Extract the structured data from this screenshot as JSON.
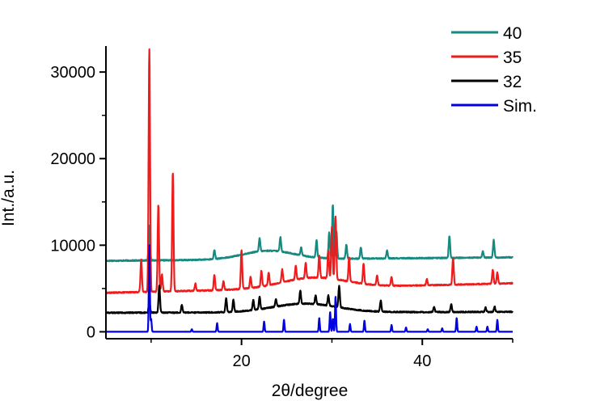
{
  "chart_data": {
    "type": "line",
    "title": "",
    "xlabel": "2θ/degree",
    "ylabel": "Int./a.u.",
    "xlim": [
      5,
      50
    ],
    "ylim": [
      -800,
      33000
    ],
    "x_ticks": [
      20,
      40
    ],
    "y_ticks": [
      0,
      10000,
      20000,
      30000
    ],
    "grid": false,
    "legend": {
      "position": "top-right",
      "order": [
        "40",
        "35",
        "32",
        "Sim."
      ]
    },
    "series": [
      {
        "name": "40",
        "color": "#168a80",
        "baseline": 8000,
        "offset_start": 8200,
        "offset_end": 8600,
        "hump": {
          "center": 23,
          "width": 4,
          "height": 1000
        },
        "peaks": [
          [
            9.8,
            4000
          ],
          [
            17.0,
            1000
          ],
          [
            22.0,
            1500
          ],
          [
            24.3,
            1700
          ],
          [
            26.6,
            900
          ],
          [
            28.3,
            2000
          ],
          [
            29.7,
            3000
          ],
          [
            30.1,
            6200
          ],
          [
            30.5,
            3200
          ],
          [
            31.6,
            1600
          ],
          [
            33.2,
            1300
          ],
          [
            36.1,
            900
          ],
          [
            43.0,
            2500
          ],
          [
            46.7,
            700
          ],
          [
            47.9,
            2000
          ]
        ]
      },
      {
        "name": "35",
        "color": "#ee1c1c",
        "baseline": 4500,
        "offset_start": 4500,
        "offset_end": 5600,
        "hump": {
          "center": 28,
          "width": 5,
          "height": 1200
        },
        "peaks": [
          [
            8.9,
            3800
          ],
          [
            9.8,
            28000
          ],
          [
            10.8,
            10000
          ],
          [
            11.2,
            2000
          ],
          [
            12.4,
            13700
          ],
          [
            14.9,
            800
          ],
          [
            17.0,
            1800
          ],
          [
            18.0,
            1000
          ],
          [
            20.0,
            4500
          ],
          [
            21.0,
            1300
          ],
          [
            22.2,
            1800
          ],
          [
            23.0,
            1500
          ],
          [
            24.5,
            1500
          ],
          [
            26.0,
            1600
          ],
          [
            27.1,
            1800
          ],
          [
            28.6,
            2600
          ],
          [
            29.6,
            3200
          ],
          [
            30.0,
            6000
          ],
          [
            30.4,
            7300
          ],
          [
            31.9,
            2800
          ],
          [
            33.5,
            2300
          ],
          [
            35.0,
            1100
          ],
          [
            36.6,
            1000
          ],
          [
            40.5,
            700
          ],
          [
            43.4,
            3100
          ],
          [
            47.8,
            1600
          ],
          [
            48.3,
            1300
          ]
        ]
      },
      {
        "name": "32",
        "color": "#000000",
        "baseline": 2000,
        "offset_start": 2200,
        "offset_end": 2300,
        "hump": {
          "center": 27,
          "width": 5,
          "height": 1000
        },
        "peaks": [
          [
            9.8,
            1400
          ],
          [
            10.9,
            3200
          ],
          [
            13.4,
            900
          ],
          [
            18.3,
            1600
          ],
          [
            19.1,
            1400
          ],
          [
            21.3,
            1200
          ],
          [
            22.0,
            1500
          ],
          [
            23.8,
            900
          ],
          [
            26.5,
            1500
          ],
          [
            28.2,
            1000
          ],
          [
            29.6,
            1200
          ],
          [
            30.8,
            2500
          ],
          [
            35.4,
            1300
          ],
          [
            41.3,
            600
          ],
          [
            43.2,
            900
          ],
          [
            47.0,
            500
          ],
          [
            48.0,
            600
          ]
        ]
      },
      {
        "name": "Sim.",
        "color": "#0000e6",
        "baseline": 0,
        "offset_start": 0,
        "offset_end": 0,
        "hump": {
          "center": 25,
          "width": 1,
          "height": 0
        },
        "peaks": [
          [
            9.8,
            10000
          ],
          [
            10.0,
            1500
          ],
          [
            14.5,
            300
          ],
          [
            17.3,
            1000
          ],
          [
            22.5,
            1200
          ],
          [
            24.7,
            1400
          ],
          [
            28.6,
            1600
          ],
          [
            29.8,
            2300
          ],
          [
            30.1,
            1500
          ],
          [
            30.4,
            4100
          ],
          [
            32.0,
            900
          ],
          [
            33.6,
            1300
          ],
          [
            36.6,
            800
          ],
          [
            38.2,
            500
          ],
          [
            40.6,
            300
          ],
          [
            42.2,
            400
          ],
          [
            43.8,
            1600
          ],
          [
            46.0,
            600
          ],
          [
            47.2,
            600
          ],
          [
            48.3,
            1400
          ]
        ]
      }
    ]
  }
}
